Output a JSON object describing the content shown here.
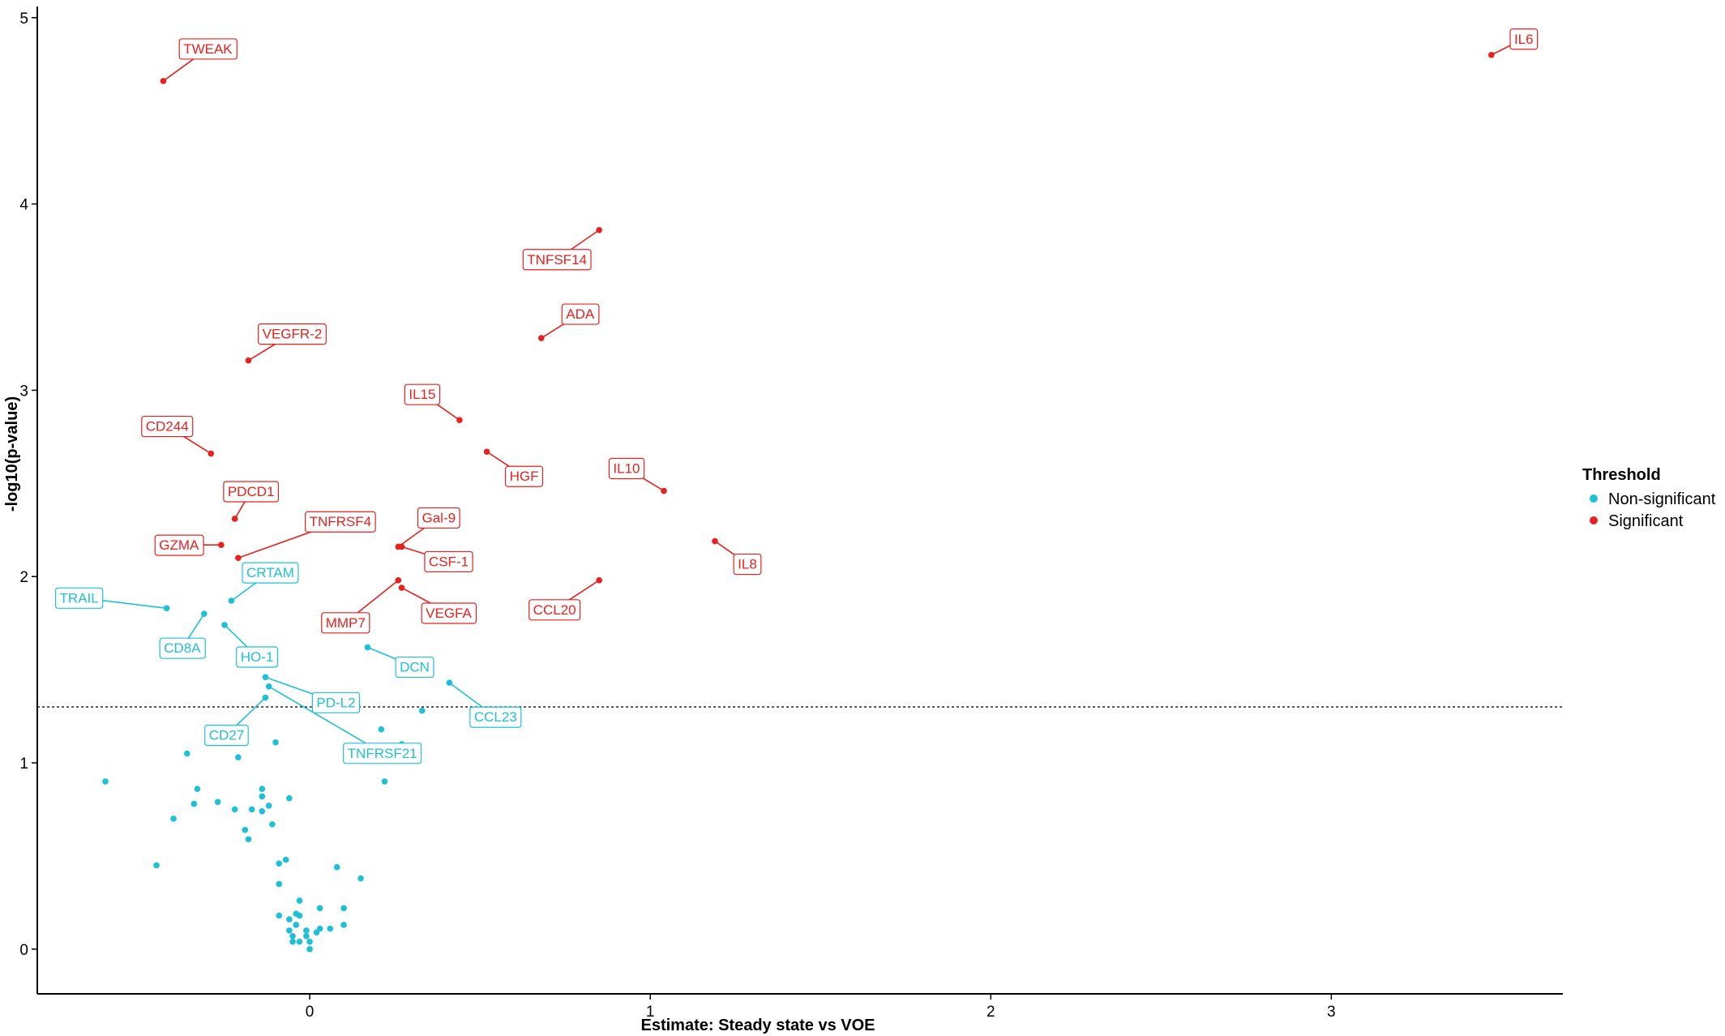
{
  "chart_data": {
    "type": "scatter",
    "title": "",
    "xlabel": "Estimate: Steady state vs VOE",
    "ylabel": "-log10(p-value)",
    "xlim": [
      -0.8,
      3.68
    ],
    "ylim": [
      -0.24,
      5.06
    ],
    "xticks": [
      "0",
      "1",
      "2",
      "3"
    ],
    "xtick_values": [
      0,
      1,
      2,
      3
    ],
    "yticks": [
      "0",
      "1",
      "2",
      "3",
      "4",
      "5"
    ],
    "ytick_values": [
      0,
      1,
      2,
      3,
      4,
      5
    ],
    "threshold_line": 1.3,
    "grid": false,
    "legend": {
      "title": "Threshold",
      "position": "right",
      "entries": [
        {
          "label": "Non-significant",
          "color": "#00bfc4"
        },
        {
          "label": "Significant",
          "color": "#f8766d"
        }
      ]
    },
    "colors": {
      "Non-significant": "#1ec0d8",
      "Significant": "#e8211e"
    },
    "series": [
      {
        "name": "Significant",
        "points": [
          {
            "x": 3.47,
            "y": 4.8,
            "label": "IL6"
          },
          {
            "x": -0.43,
            "y": 4.66,
            "label": "TWEAK"
          },
          {
            "x": 0.85,
            "y": 3.86,
            "label": "TNFSF14"
          },
          {
            "x": 0.68,
            "y": 3.28,
            "label": "ADA"
          },
          {
            "x": -0.18,
            "y": 3.16,
            "label": "VEGFR-2"
          },
          {
            "x": 0.44,
            "y": 2.84,
            "label": "IL15"
          },
          {
            "x": -0.29,
            "y": 2.66,
            "label": "CD244"
          },
          {
            "x": 0.52,
            "y": 2.67,
            "label": "HGF"
          },
          {
            "x": 1.04,
            "y": 2.46,
            "label": "IL10"
          },
          {
            "x": -0.22,
            "y": 2.31,
            "label": "PDCD1"
          },
          {
            "x": 0.26,
            "y": 2.16,
            "label": "Gal-9"
          },
          {
            "x": 0.27,
            "y": 2.16,
            "label": "CSF-1"
          },
          {
            "x": -0.26,
            "y": 2.17,
            "label": "GZMA"
          },
          {
            "x": -0.21,
            "y": 2.1,
            "label": "TNFRSF4"
          },
          {
            "x": 1.19,
            "y": 2.19,
            "label": "IL8"
          },
          {
            "x": 0.26,
            "y": 1.98,
            "label": "MMP7"
          },
          {
            "x": 0.27,
            "y": 1.94,
            "label": "VEGFA"
          },
          {
            "x": 0.85,
            "y": 1.98,
            "label": "CCL20"
          }
        ]
      },
      {
        "name": "Non-significant",
        "points": [
          {
            "x": -0.42,
            "y": 1.83,
            "label": "TRAIL"
          },
          {
            "x": -0.31,
            "y": 1.8,
            "label": "CD8A"
          },
          {
            "x": -0.23,
            "y": 1.87,
            "label": "CRTAM"
          },
          {
            "x": -0.25,
            "y": 1.74,
            "label": "HO-1"
          },
          {
            "x": 0.17,
            "y": 1.62,
            "label": "DCN"
          },
          {
            "x": -0.13,
            "y": 1.46,
            "label": "PD-L2"
          },
          {
            "x": -0.13,
            "y": 1.35,
            "label": "CD27"
          },
          {
            "x": -0.12,
            "y": 1.41,
            "label": "TNFRSF21"
          },
          {
            "x": 0.41,
            "y": 1.43,
            "label": "CCL23"
          },
          {
            "x": -0.6,
            "y": 0.9
          },
          {
            "x": -0.45,
            "y": 0.45
          },
          {
            "x": -0.4,
            "y": 0.7
          },
          {
            "x": -0.36,
            "y": 1.05
          },
          {
            "x": -0.34,
            "y": 0.78
          },
          {
            "x": -0.33,
            "y": 0.86
          },
          {
            "x": -0.27,
            "y": 0.79
          },
          {
            "x": -0.22,
            "y": 0.75
          },
          {
            "x": -0.21,
            "y": 1.03
          },
          {
            "x": -0.19,
            "y": 0.64
          },
          {
            "x": -0.18,
            "y": 0.59
          },
          {
            "x": -0.17,
            "y": 0.75
          },
          {
            "x": -0.14,
            "y": 0.86
          },
          {
            "x": -0.14,
            "y": 0.82
          },
          {
            "x": -0.14,
            "y": 0.74
          },
          {
            "x": -0.12,
            "y": 0.77
          },
          {
            "x": -0.11,
            "y": 0.67
          },
          {
            "x": -0.1,
            "y": 1.11
          },
          {
            "x": -0.09,
            "y": 0.46
          },
          {
            "x": -0.09,
            "y": 0.35
          },
          {
            "x": -0.09,
            "y": 0.18
          },
          {
            "x": -0.07,
            "y": 0.48
          },
          {
            "x": -0.06,
            "y": 0.81
          },
          {
            "x": -0.06,
            "y": 0.16
          },
          {
            "x": -0.06,
            "y": 0.1
          },
          {
            "x": -0.05,
            "y": 0.07
          },
          {
            "x": -0.05,
            "y": 0.04
          },
          {
            "x": -0.04,
            "y": 0.19
          },
          {
            "x": -0.04,
            "y": 0.13
          },
          {
            "x": -0.03,
            "y": 0.26
          },
          {
            "x": -0.03,
            "y": 0.18
          },
          {
            "x": -0.03,
            "y": 0.04
          },
          {
            "x": -0.01,
            "y": 0.1
          },
          {
            "x": -0.01,
            "y": 0.07
          },
          {
            "x": 0.0,
            "y": 0.04
          },
          {
            "x": 0.0,
            "y": 0.0
          },
          {
            "x": 0.02,
            "y": 0.09
          },
          {
            "x": 0.03,
            "y": 0.11
          },
          {
            "x": 0.03,
            "y": 0.22
          },
          {
            "x": 0.06,
            "y": 0.11
          },
          {
            "x": 0.08,
            "y": 0.44
          },
          {
            "x": 0.1,
            "y": 0.22
          },
          {
            "x": 0.1,
            "y": 0.13
          },
          {
            "x": 0.15,
            "y": 0.38
          },
          {
            "x": 0.21,
            "y": 1.18
          },
          {
            "x": 0.22,
            "y": 0.9
          },
          {
            "x": 0.27,
            "y": 1.1
          },
          {
            "x": 0.33,
            "y": 1.28
          }
        ]
      }
    ]
  }
}
